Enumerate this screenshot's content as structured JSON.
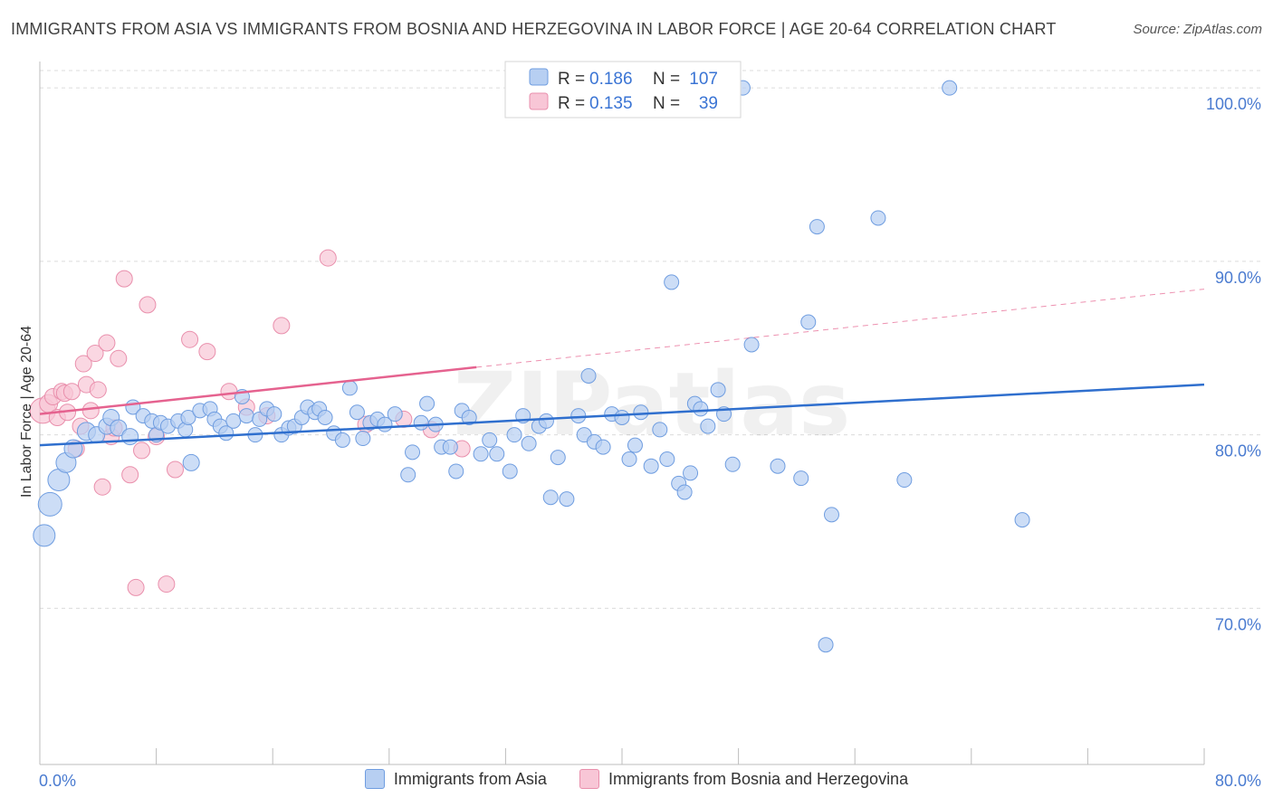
{
  "header": {
    "title": "IMMIGRANTS FROM ASIA VS IMMIGRANTS FROM BOSNIA AND HERZEGOVINA IN LABOR FORCE | AGE 20-64 CORRELATION CHART",
    "source": "Source: ZipAtlas.com"
  },
  "watermark": "ZIPatlas",
  "colors": {
    "asia_fill": "#b7cff2",
    "asia_stroke": "#6f9de0",
    "asia_line": "#2f6fce",
    "bosnia_fill": "#f8c6d6",
    "bosnia_stroke": "#e98fac",
    "bosnia_line": "#e5628f",
    "tick_label": "#4a7bd0",
    "grid": "#dcdcdc"
  },
  "legend_box": {
    "rows": [
      {
        "r_label": "R =",
        "r_value": "0.186",
        "n_label": "N =",
        "n_value": "107"
      },
      {
        "r_label": "R =",
        "r_value": "0.135",
        "n_label": "N =",
        "n_value": "39"
      }
    ]
  },
  "chart_data": {
    "type": "scatter",
    "title": "IMMIGRANTS FROM ASIA VS IMMIGRANTS FROM BOSNIA AND HERZEGOVINA IN LABOR FORCE | AGE 20-64 CORRELATION CHART",
    "xlabel": "",
    "ylabel": "In Labor Force | Age 20-64",
    "xlim": [
      0,
      80
    ],
    "ylim": [
      61,
      101
    ],
    "x_tick_labels": [
      "0.0%",
      "80.0%"
    ],
    "y_ticks": [
      70,
      80,
      90,
      100
    ],
    "y_tick_labels": [
      "70.0%",
      "80.0%",
      "90.0%",
      "100.0%"
    ],
    "grid": true,
    "legend_position": "bottom",
    "series": [
      {
        "name": "Immigrants from Asia",
        "r": 0.186,
        "n": 107,
        "trend": {
          "x": [
            0,
            80
          ],
          "y": [
            79.4,
            82.9
          ]
        },
        "points": [
          [
            0.3,
            74.2,
            12
          ],
          [
            0.7,
            76.0,
            13
          ],
          [
            1.3,
            77.4,
            12
          ],
          [
            1.8,
            78.4,
            11
          ],
          [
            2.3,
            79.2,
            10
          ],
          [
            3.2,
            80.2,
            10
          ],
          [
            3.9,
            80.0,
            9
          ],
          [
            4.6,
            80.5,
            9
          ],
          [
            4.9,
            81.0,
            9
          ],
          [
            5.4,
            80.4,
            9
          ],
          [
            6.2,
            79.9,
            9
          ],
          [
            6.4,
            81.6,
            8
          ],
          [
            7.1,
            81.1,
            8
          ],
          [
            7.7,
            80.8,
            8
          ],
          [
            8.0,
            80.0,
            8
          ],
          [
            8.3,
            80.7,
            8
          ],
          [
            8.8,
            80.5,
            8
          ],
          [
            9.5,
            80.8,
            8
          ],
          [
            10.0,
            80.3,
            8
          ],
          [
            10.2,
            81.0,
            8
          ],
          [
            10.4,
            78.4,
            9
          ],
          [
            11.0,
            81.4,
            8
          ],
          [
            11.7,
            81.5,
            8
          ],
          [
            12.0,
            80.9,
            8
          ],
          [
            12.4,
            80.5,
            8
          ],
          [
            12.8,
            80.1,
            8
          ],
          [
            13.3,
            80.8,
            8
          ],
          [
            13.9,
            82.2,
            8
          ],
          [
            14.2,
            81.1,
            8
          ],
          [
            14.8,
            80.0,
            8
          ],
          [
            15.1,
            80.9,
            8
          ],
          [
            15.6,
            81.5,
            8
          ],
          [
            16.1,
            81.2,
            8
          ],
          [
            16.6,
            80.0,
            8
          ],
          [
            17.1,
            80.4,
            8
          ],
          [
            17.5,
            80.5,
            8
          ],
          [
            18.0,
            81.0,
            8
          ],
          [
            18.4,
            81.6,
            8
          ],
          [
            18.9,
            81.3,
            8
          ],
          [
            19.2,
            81.5,
            8
          ],
          [
            19.6,
            81.0,
            8
          ],
          [
            20.2,
            80.1,
            8
          ],
          [
            20.8,
            79.7,
            8
          ],
          [
            21.3,
            82.7,
            8
          ],
          [
            21.8,
            81.3,
            8
          ],
          [
            22.2,
            79.8,
            8
          ],
          [
            22.7,
            80.7,
            8
          ],
          [
            23.2,
            80.9,
            8
          ],
          [
            23.7,
            80.6,
            8
          ],
          [
            24.4,
            81.2,
            8
          ],
          [
            25.3,
            77.7,
            8
          ],
          [
            25.6,
            79.0,
            8
          ],
          [
            26.2,
            80.7,
            8
          ],
          [
            26.6,
            81.8,
            8
          ],
          [
            27.2,
            80.6,
            8
          ],
          [
            27.6,
            79.3,
            8
          ],
          [
            28.2,
            79.3,
            8
          ],
          [
            28.6,
            77.9,
            8
          ],
          [
            29.0,
            81.4,
            8
          ],
          [
            29.5,
            81.0,
            8
          ],
          [
            30.3,
            78.9,
            8
          ],
          [
            30.9,
            79.7,
            8
          ],
          [
            31.4,
            78.9,
            8
          ],
          [
            32.3,
            77.9,
            8
          ],
          [
            32.6,
            80.0,
            8
          ],
          [
            33.2,
            81.1,
            8
          ],
          [
            33.6,
            79.5,
            8
          ],
          [
            34.3,
            80.5,
            8
          ],
          [
            34.8,
            80.8,
            8
          ],
          [
            35.1,
            76.4,
            8
          ],
          [
            35.6,
            78.7,
            8
          ],
          [
            36.2,
            76.3,
            8
          ],
          [
            37.0,
            81.1,
            8
          ],
          [
            37.4,
            80.0,
            8
          ],
          [
            37.7,
            83.4,
            8
          ],
          [
            38.1,
            79.6,
            8
          ],
          [
            38.7,
            79.3,
            8
          ],
          [
            39.3,
            81.2,
            8
          ],
          [
            40.0,
            81.0,
            8
          ],
          [
            40.5,
            78.6,
            8
          ],
          [
            40.9,
            79.4,
            8
          ],
          [
            41.3,
            81.3,
            8
          ],
          [
            42.0,
            78.2,
            8
          ],
          [
            42.6,
            80.3,
            8
          ],
          [
            43.1,
            78.6,
            8
          ],
          [
            43.4,
            88.8,
            8
          ],
          [
            43.9,
            77.2,
            8
          ],
          [
            44.3,
            76.7,
            8
          ],
          [
            44.7,
            77.8,
            8
          ],
          [
            45.0,
            81.8,
            8
          ],
          [
            45.4,
            81.5,
            8
          ],
          [
            45.9,
            80.5,
            8
          ],
          [
            46.6,
            82.6,
            8
          ],
          [
            47.0,
            81.2,
            8
          ],
          [
            47.6,
            78.3,
            8
          ],
          [
            48.3,
            100.0,
            8
          ],
          [
            48.9,
            85.2,
            8
          ],
          [
            50.7,
            78.2,
            8
          ],
          [
            52.3,
            77.5,
            8
          ],
          [
            52.8,
            86.5,
            8
          ],
          [
            53.4,
            92.0,
            8
          ],
          [
            54.4,
            75.4,
            8
          ],
          [
            54.0,
            67.9,
            8
          ],
          [
            57.6,
            92.5,
            8
          ],
          [
            59.4,
            77.4,
            8
          ],
          [
            62.5,
            100.0,
            8
          ],
          [
            67.5,
            75.1,
            8
          ]
        ]
      },
      {
        "name": "Immigrants from Bosnia and Herzegovina",
        "r": 0.135,
        "n": 39,
        "trend": {
          "x": [
            0,
            30
          ],
          "y": [
            81.2,
            83.9
          ],
          "x_ext": [
            30,
            80
          ],
          "y_ext": [
            83.9,
            88.4
          ]
        },
        "points": [
          [
            0.2,
            81.4,
            14
          ],
          [
            0.6,
            81.8,
            10
          ],
          [
            0.9,
            82.2,
            9
          ],
          [
            1.2,
            81.0,
            9
          ],
          [
            1.5,
            82.5,
            9
          ],
          [
            1.7,
            82.4,
            9
          ],
          [
            1.9,
            81.3,
            9
          ],
          [
            2.2,
            82.5,
            9
          ],
          [
            2.5,
            79.2,
            9
          ],
          [
            2.8,
            80.5,
            9
          ],
          [
            3.0,
            84.1,
            9
          ],
          [
            3.2,
            82.9,
            9
          ],
          [
            3.5,
            81.4,
            9
          ],
          [
            3.8,
            84.7,
            9
          ],
          [
            4.0,
            82.6,
            9
          ],
          [
            4.3,
            77.0,
            9
          ],
          [
            4.6,
            85.3,
            9
          ],
          [
            4.9,
            79.9,
            9
          ],
          [
            5.1,
            80.4,
            9
          ],
          [
            5.4,
            84.4,
            9
          ],
          [
            5.8,
            89.0,
            9
          ],
          [
            6.2,
            77.7,
            9
          ],
          [
            6.6,
            71.2,
            9
          ],
          [
            7.0,
            79.1,
            9
          ],
          [
            7.4,
            87.5,
            9
          ],
          [
            8.0,
            79.9,
            9
          ],
          [
            8.7,
            71.4,
            9
          ],
          [
            9.3,
            78.0,
            9
          ],
          [
            10.3,
            85.5,
            9
          ],
          [
            11.5,
            84.8,
            9
          ],
          [
            13.0,
            82.5,
            9
          ],
          [
            14.2,
            81.6,
            9
          ],
          [
            15.6,
            81.1,
            9
          ],
          [
            16.6,
            86.3,
            9
          ],
          [
            19.8,
            90.2,
            9
          ],
          [
            22.4,
            80.6,
            9
          ],
          [
            25.0,
            80.9,
            9
          ],
          [
            26.9,
            80.3,
            9
          ],
          [
            29.0,
            79.2,
            9
          ]
        ]
      }
    ]
  }
}
